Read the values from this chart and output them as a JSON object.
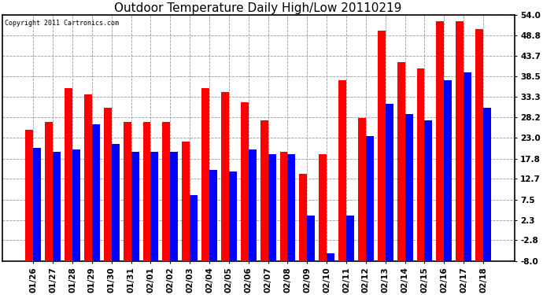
{
  "title": "Outdoor Temperature Daily High/Low 20110219",
  "copyright": "Copyright 2011 Cartronics.com",
  "categories": [
    "01/26",
    "01/27",
    "01/28",
    "01/29",
    "01/30",
    "01/31",
    "02/01",
    "02/02",
    "02/03",
    "02/04",
    "02/05",
    "02/06",
    "02/07",
    "02/08",
    "02/09",
    "02/10",
    "02/11",
    "02/12",
    "02/13",
    "02/14",
    "02/15",
    "02/16",
    "02/17",
    "02/18"
  ],
  "high_values": [
    25.0,
    27.0,
    35.5,
    34.0,
    30.5,
    27.0,
    27.0,
    27.0,
    22.0,
    35.5,
    34.5,
    32.0,
    27.5,
    19.5,
    14.0,
    19.0,
    37.5,
    28.0,
    50.0,
    42.0,
    40.5,
    52.5,
    52.5,
    50.5
  ],
  "low_values": [
    20.5,
    19.5,
    20.0,
    26.5,
    21.5,
    19.5,
    19.5,
    19.5,
    8.5,
    15.0,
    14.5,
    20.0,
    19.0,
    19.0,
    3.5,
    -6.0,
    3.5,
    23.5,
    31.5,
    29.0,
    27.5,
    37.5,
    39.5,
    30.5
  ],
  "ylim": [
    -8.0,
    54.0
  ],
  "ymin": -8.0,
  "yticks": [
    -8.0,
    -2.8,
    2.3,
    7.5,
    12.7,
    17.8,
    23.0,
    28.2,
    33.3,
    38.5,
    43.7,
    48.8,
    54.0
  ],
  "high_color": "#ff0000",
  "low_color": "#0000ff",
  "bar_width": 0.4,
  "bg_color": "#ffffff",
  "grid_color": "#999999",
  "title_fontsize": 11,
  "tick_fontsize": 7.5
}
